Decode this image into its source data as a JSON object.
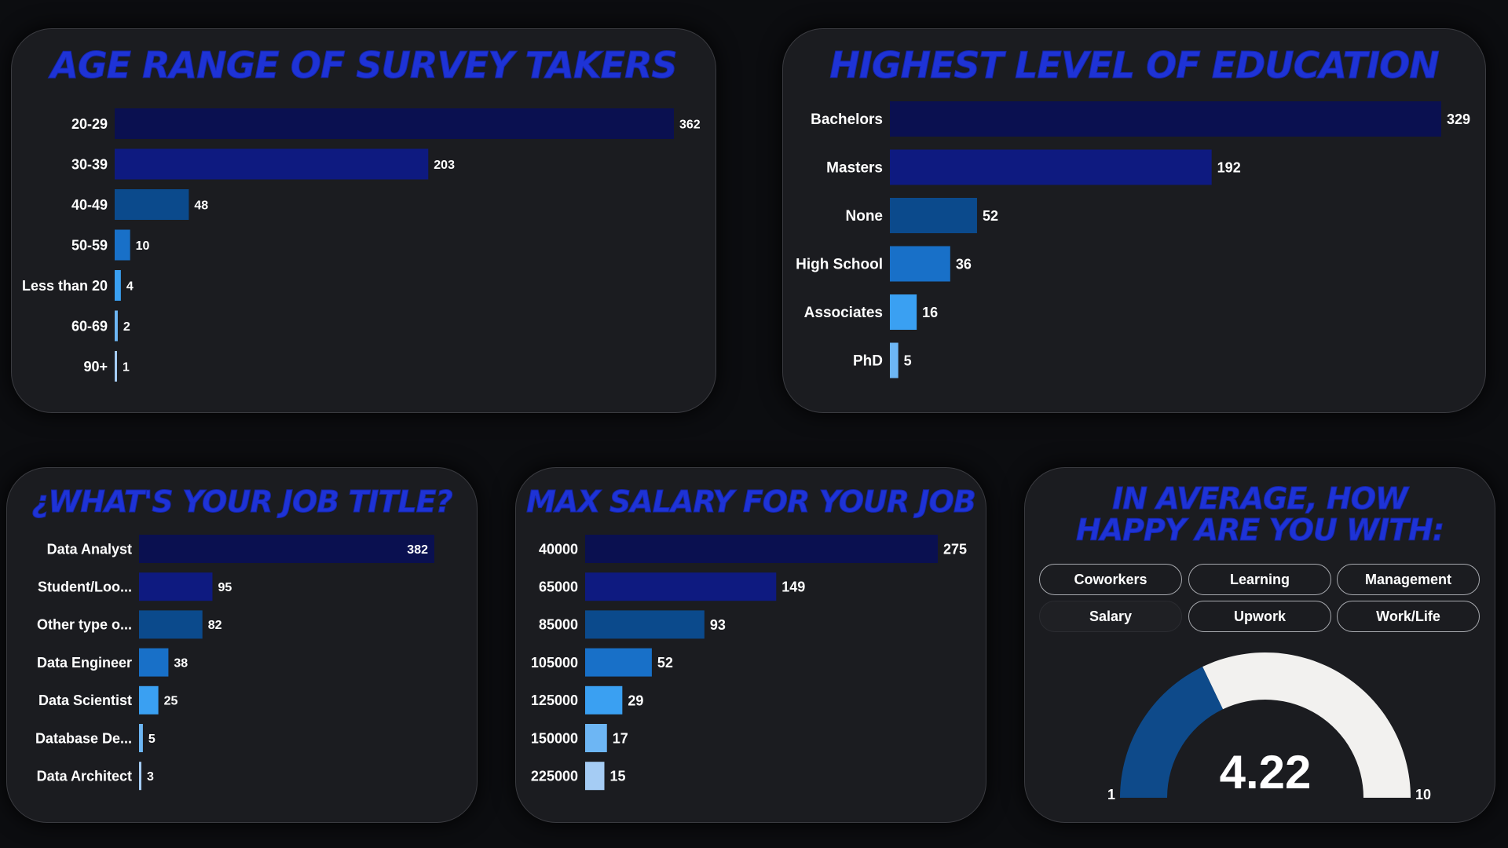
{
  "colors": {
    "title": "#1e33d6",
    "bar_shades": [
      "#0a1050",
      "#0e1a80",
      "#0b4a8c",
      "#1870c8",
      "#3aa0f2",
      "#6db6f4",
      "#a5ccf4"
    ],
    "gauge_fill": "#0e4a8a",
    "gauge_track": "#f2f1ef"
  },
  "chart_data": [
    {
      "id": "age",
      "type": "bar",
      "orientation": "horizontal",
      "title": "AGE RANGE OF SURVEY TAKERS",
      "categories": [
        "20-29",
        "30-39",
        "40-49",
        "50-59",
        "Less than 20",
        "60-69",
        "90+"
      ],
      "values": [
        362,
        203,
        48,
        10,
        4,
        2,
        1
      ],
      "xlim": [
        0,
        362
      ],
      "grid": false,
      "legend": "none"
    },
    {
      "id": "education",
      "type": "bar",
      "orientation": "horizontal",
      "title": "HIGHEST LEVEL OF EDUCATION",
      "categories": [
        "Bachelors",
        "Masters",
        "None",
        "High School",
        "Associates",
        "PhD"
      ],
      "values": [
        329,
        192,
        52,
        36,
        16,
        5
      ],
      "xlim": [
        0,
        329
      ],
      "grid": false,
      "legend": "none"
    },
    {
      "id": "job",
      "type": "bar",
      "orientation": "horizontal",
      "title": "¿WHAT'S YOUR JOB TITLE?",
      "categories": [
        "Data Analyst",
        "Student/Loo...",
        "Other type o...",
        "Data Engineer",
        "Data Scientist",
        "Database De...",
        "Data Architect"
      ],
      "values": [
        382,
        95,
        82,
        38,
        25,
        5,
        3
      ],
      "xlim": [
        0,
        382
      ],
      "grid": false,
      "legend": "none"
    },
    {
      "id": "salary",
      "type": "bar",
      "orientation": "horizontal",
      "title": "MAX SALARY FOR YOUR JOB",
      "categories": [
        "40000",
        "65000",
        "85000",
        "105000",
        "125000",
        "150000",
        "225000"
      ],
      "values": [
        275,
        149,
        93,
        52,
        29,
        17,
        15
      ],
      "xlim": [
        0,
        275
      ],
      "grid": false,
      "legend": "none"
    },
    {
      "id": "happiness",
      "type": "gauge",
      "title": "IN AVERAGE, HOW HAPPY ARE YOU WITH:",
      "value": 4.22,
      "min": 1,
      "max": 10,
      "value_label": "4.22",
      "min_label": "1",
      "max_label": "10"
    }
  ],
  "filters": {
    "options": [
      "Coworkers",
      "Learning",
      "Management",
      "Salary",
      "Upwork",
      "Work/Life"
    ],
    "selected": "Salary"
  }
}
